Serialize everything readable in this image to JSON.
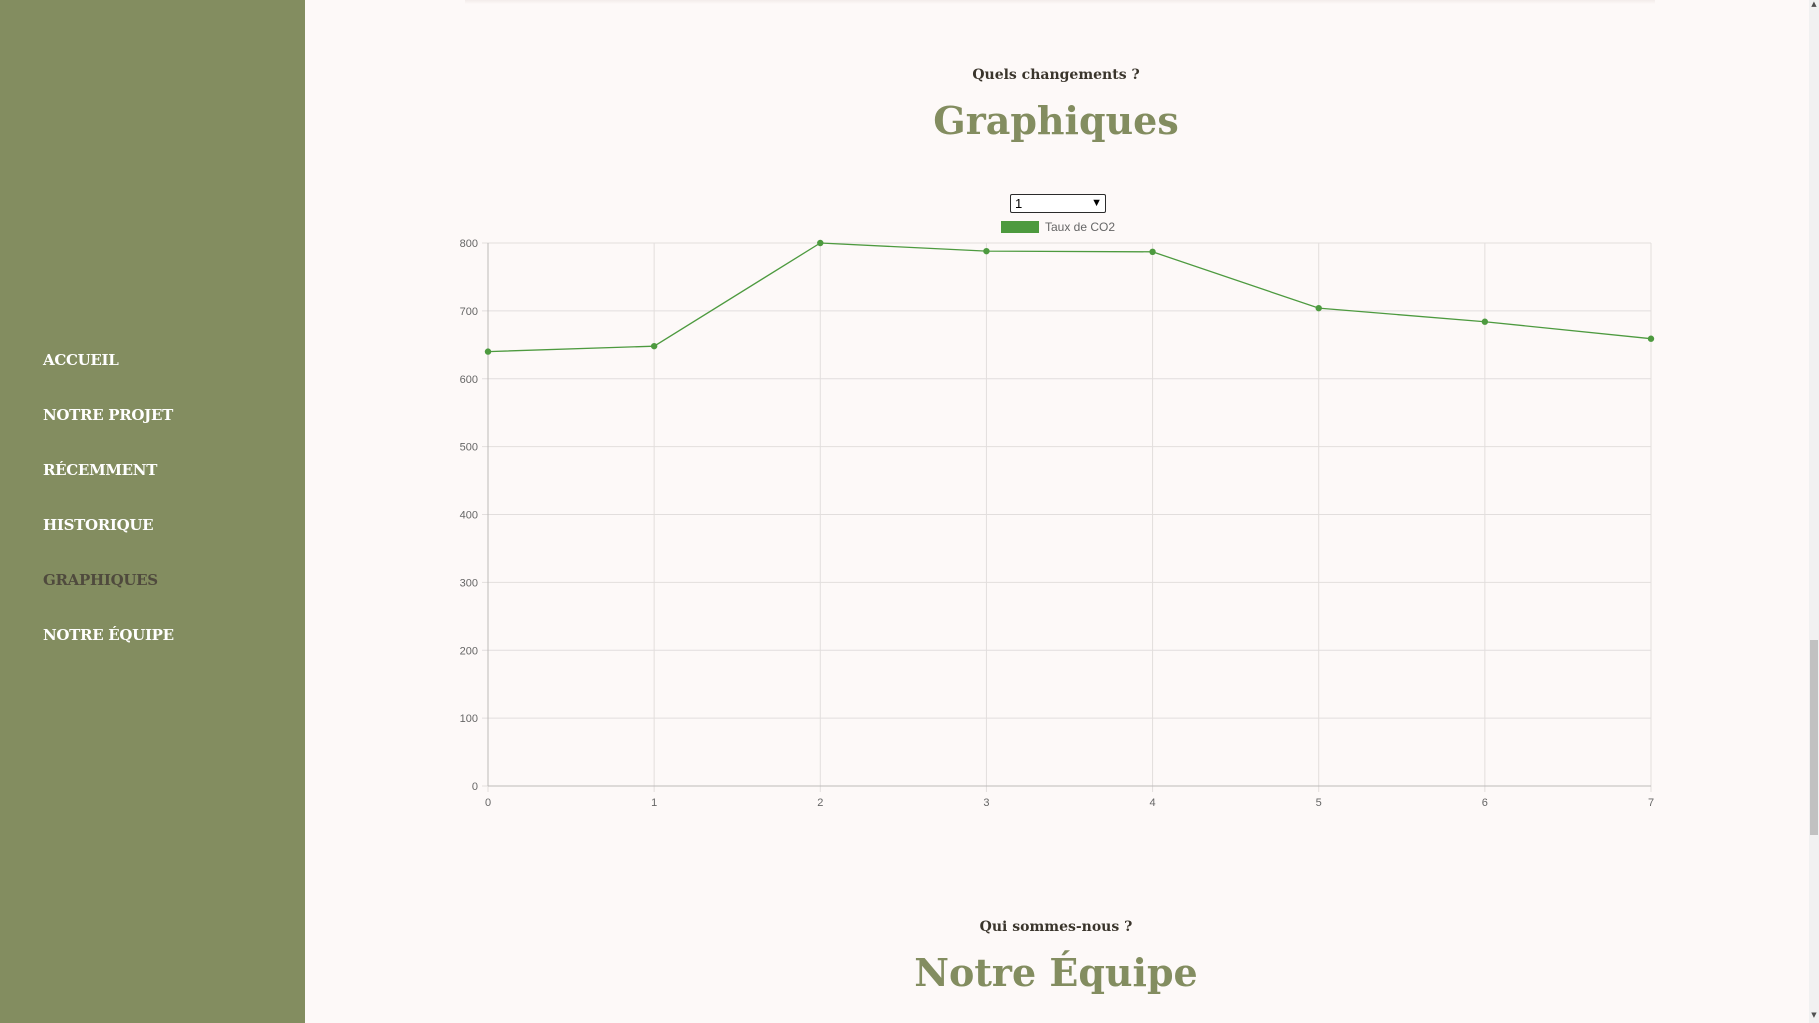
{
  "sidebar": {
    "items": [
      {
        "label": "ACCUEIL",
        "active": false
      },
      {
        "label": "NOTRE PROJET",
        "active": false
      },
      {
        "label": "RÉCEMMENT",
        "active": false
      },
      {
        "label": "HISTORIQUE",
        "active": false
      },
      {
        "label": "GRAPHIQUES",
        "active": true
      },
      {
        "label": "NOTRE ÉQUIPE",
        "active": false
      }
    ]
  },
  "sections": {
    "graphs": {
      "kicker": "Quels changements ?",
      "title": "Graphiques"
    },
    "team": {
      "kicker": "Qui sommes-nous ?",
      "title": "Notre Équipe"
    }
  },
  "select": {
    "value": "1"
  },
  "colors": {
    "sidebar": "#838d60",
    "accent": "#838d60",
    "series": "#4d9a3f"
  },
  "chart_data": {
    "type": "line",
    "x": [
      0,
      1,
      2,
      3,
      4,
      5,
      6,
      7
    ],
    "series": [
      {
        "name": "Taux de CO2",
        "values": [
          640,
          648,
          800,
          788,
          787,
          704,
          684,
          659
        ]
      }
    ],
    "xlim": [
      0,
      7
    ],
    "ylim": [
      0,
      800
    ],
    "yticks": [
      0,
      100,
      200,
      300,
      400,
      500,
      600,
      700,
      800
    ],
    "grid": true,
    "legend": "top-center"
  }
}
